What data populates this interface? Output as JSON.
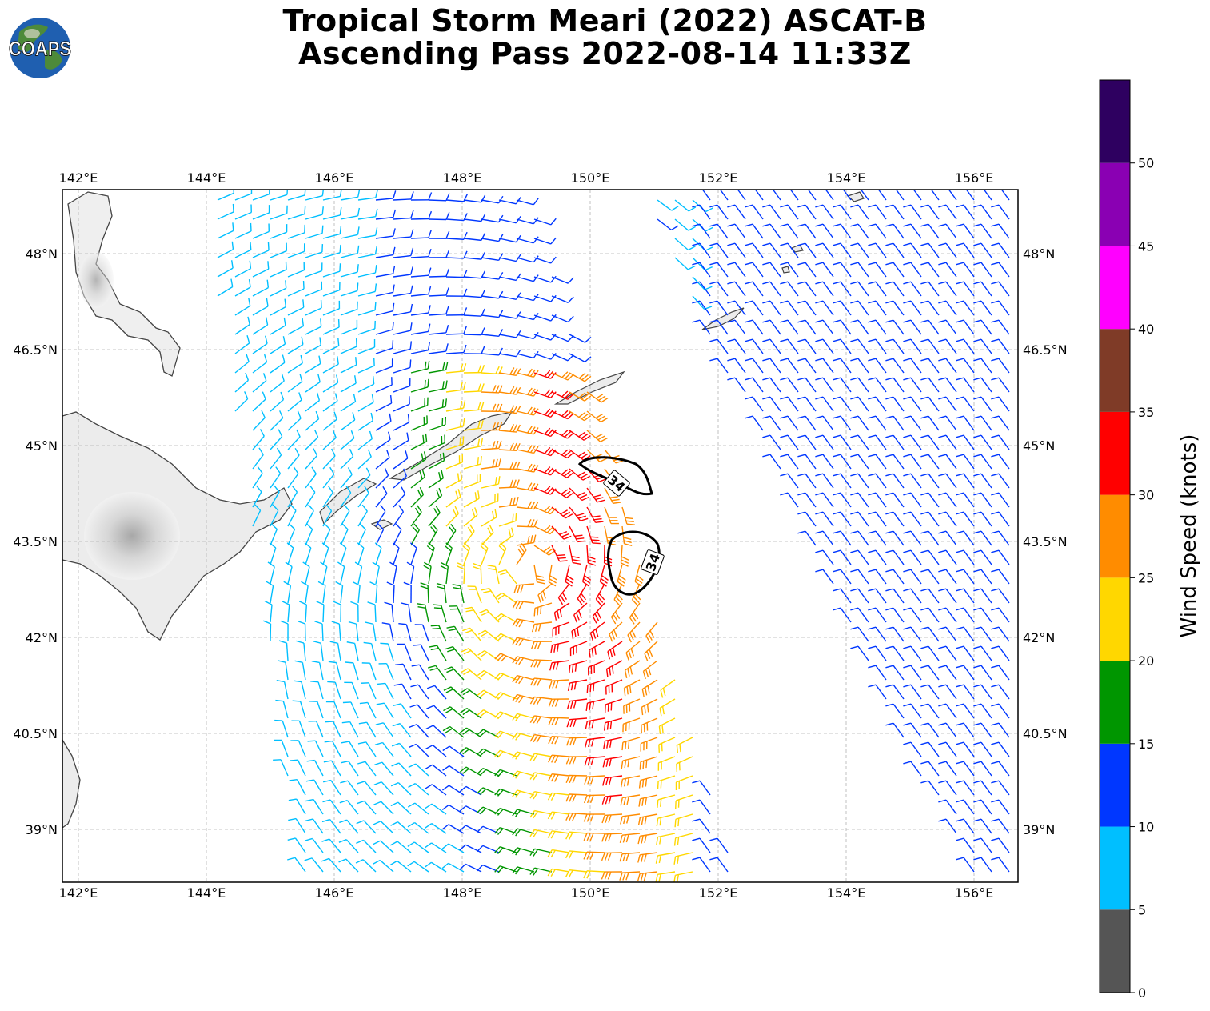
{
  "title": {
    "line1": "Tropical Storm Meari (2022) ASCAT-B",
    "line2": "Ascending Pass 2022-08-14 11:33Z"
  },
  "logo": {
    "text": "COAPS",
    "icon": "globe-icon"
  },
  "map": {
    "lon_range": [
      141.75,
      156.65
    ],
    "lat_range": [
      37.8,
      48.6
    ],
    "lon_ticks": [
      "142°E",
      "144°E",
      "146°E",
      "148°E",
      "150°E",
      "152°E",
      "154°E",
      "156°E"
    ],
    "lat_ticks": [
      "48°N",
      "46.5°N",
      "45°N",
      "43.5°N",
      "42°N",
      "40.5°N",
      "39°N"
    ],
    "grid": "dashed",
    "contour_labels": [
      "34",
      "34"
    ]
  },
  "colorbar": {
    "label": "Wind Speed (knots)",
    "tick_labels": [
      "0",
      "5",
      "10",
      "15",
      "20",
      "25",
      "30",
      "35",
      "40",
      "45",
      "50"
    ],
    "bins": [
      {
        "min": 0,
        "max": 5,
        "color": "#555555"
      },
      {
        "min": 5,
        "max": 10,
        "color": "#00bfff"
      },
      {
        "min": 10,
        "max": 15,
        "color": "#0037ff"
      },
      {
        "min": 15,
        "max": 20,
        "color": "#009600"
      },
      {
        "min": 20,
        "max": 25,
        "color": "#ffd700"
      },
      {
        "min": 25,
        "max": 30,
        "color": "#ff8c00"
      },
      {
        "min": 30,
        "max": 35,
        "color": "#ff0000"
      },
      {
        "min": 35,
        "max": 40,
        "color": "#7f3b27"
      },
      {
        "min": 40,
        "max": 45,
        "color": "#ff00ff"
      },
      {
        "min": 45,
        "max": 50,
        "color": "#8a00b3"
      },
      {
        "min": 50,
        "max": 55,
        "color": "#2e0060"
      }
    ]
  }
}
